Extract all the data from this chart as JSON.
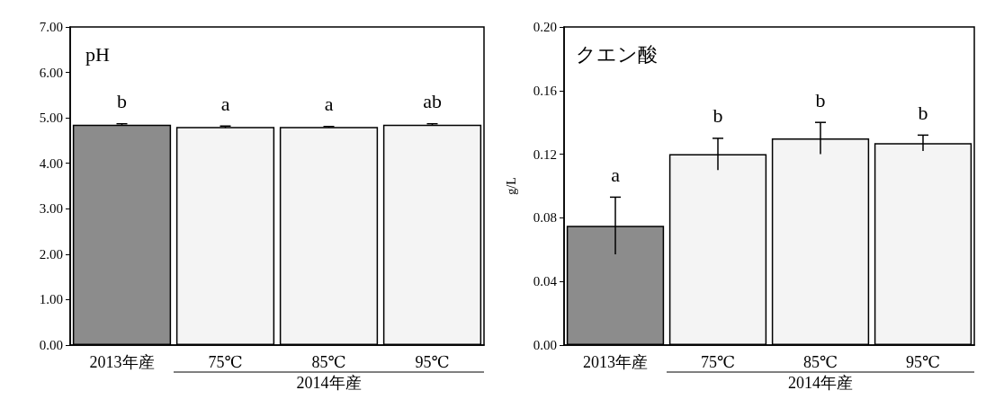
{
  "chart_data": [
    {
      "type": "bar",
      "title": "pH",
      "categories": [
        "2013年産",
        "75℃",
        "85℃",
        "95℃"
      ],
      "values": [
        4.85,
        4.8,
        4.8,
        4.85
      ],
      "errors": [
        0.02,
        0.02,
        0.01,
        0.02
      ],
      "colors": [
        "#8c8c8c",
        "#f4f4f4",
        "#f4f4f4",
        "#f4f4f4"
      ],
      "ylim": [
        0,
        7
      ],
      "yticks": [
        {
          "value": 0,
          "label": "0.00"
        },
        {
          "value": 1,
          "label": "1.00"
        },
        {
          "value": 2,
          "label": "2.00"
        },
        {
          "value": 3,
          "label": "3.00"
        },
        {
          "value": 4,
          "label": "4.00"
        },
        {
          "value": 5,
          "label": "5.00"
        },
        {
          "value": 6,
          "label": "6.00"
        },
        {
          "value": 7,
          "label": "7.00"
        }
      ],
      "annotations": [
        "b",
        "a",
        "a",
        "ab",
        "2014年産"
      ]
    },
    {
      "type": "bar",
      "title": "クエン酸",
      "ylabel": "g/L",
      "categories": [
        "2013年産",
        "75℃",
        "85℃",
        "95℃"
      ],
      "values": [
        0.075,
        0.12,
        0.13,
        0.127
      ],
      "errors": [
        0.018,
        0.01,
        0.01,
        0.005
      ],
      "colors": [
        "#8c8c8c",
        "#f4f4f4",
        "#f4f4f4",
        "#f4f4f4"
      ],
      "ylim": [
        0,
        0.2
      ],
      "yticks": [
        {
          "value": 0,
          "label": "0.00"
        },
        0.04,
        0.08,
        0.12,
        0.16,
        {
          "value": 0.2,
          "label": "0.20"
        }
      ],
      "annotations": [
        "a",
        "b",
        "b",
        "b",
        "2014年産"
      ]
    }
  ]
}
